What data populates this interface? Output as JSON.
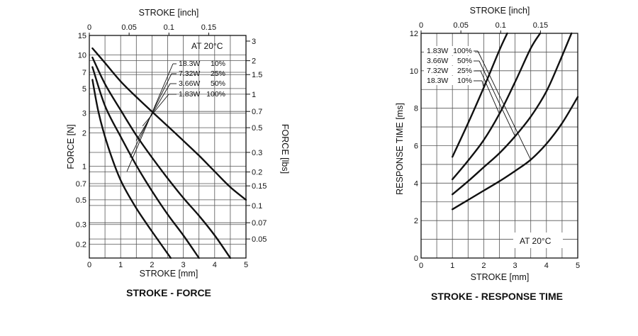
{
  "chart_data": [
    {
      "type": "line",
      "title": "STROKE - FORCE",
      "xlabel": "STROKE [mm]",
      "x2label": "STROKE [inch]",
      "ylabel": "FORCE [N]",
      "y2label": "FORCE [lbs]",
      "xlim": [
        0,
        5
      ],
      "ylim": [
        0.15,
        15
      ],
      "yscale": "log",
      "grid": true,
      "x_ticks": [
        "0",
        "1",
        "2",
        "3",
        "4",
        "5"
      ],
      "x2_ticks": [
        {
          "value": 0,
          "label": "0"
        },
        {
          "value": 0.05,
          "label": "0.05"
        },
        {
          "value": 0.1,
          "label": "0.1"
        },
        {
          "value": 0.15,
          "label": "0.15"
        }
      ],
      "y_ticks": [
        {
          "value": 15,
          "label": "15"
        },
        {
          "value": 10,
          "label": "10"
        },
        {
          "value": 7,
          "label": "7"
        },
        {
          "value": 5,
          "label": "5"
        },
        {
          "value": 3,
          "label": "3"
        },
        {
          "value": 2,
          "label": "2"
        },
        {
          "value": 1,
          "label": "1"
        },
        {
          "value": 0.7,
          "label": "0.7"
        },
        {
          "value": 0.5,
          "label": "0.5"
        },
        {
          "value": 0.3,
          "label": "0.3"
        },
        {
          "value": 0.2,
          "label": "0.2"
        }
      ],
      "y2_ticks": [
        {
          "value": 3,
          "label": "3"
        },
        {
          "value": 2,
          "label": "2"
        },
        {
          "value": 1.5,
          "label": "1.5"
        },
        {
          "value": 1,
          "label": "1"
        },
        {
          "value": 0.7,
          "label": "0.7"
        },
        {
          "value": 0.5,
          "label": "0.5"
        },
        {
          "value": 0.3,
          "label": "0.3"
        },
        {
          "value": 0.2,
          "label": "0.2"
        },
        {
          "value": 0.15,
          "label": "0.15"
        },
        {
          "value": 0.1,
          "label": "0.1"
        },
        {
          "value": 0.07,
          "label": "0.07"
        },
        {
          "value": 0.05,
          "label": "0.05"
        }
      ],
      "annotation": "AT 20°C",
      "series": [
        {
          "name": "18.3W 10%",
          "x": [
            0.1,
            0.5,
            1,
            1.5,
            2,
            2.5,
            3,
            3.5,
            4,
            4.5,
            5
          ],
          "y": [
            11.5,
            8.5,
            5.8,
            4.2,
            3.1,
            2.3,
            1.7,
            1.25,
            0.9,
            0.65,
            0.5
          ]
        },
        {
          "name": "7.32W 25%",
          "x": [
            0.1,
            0.5,
            1,
            1.5,
            2,
            2.5,
            3,
            3.5,
            4,
            4.5
          ],
          "y": [
            9.5,
            5.5,
            3.2,
            1.9,
            1.2,
            0.78,
            0.52,
            0.36,
            0.24,
            0.15
          ]
        },
        {
          "name": "3.66W 50%",
          "x": [
            0.1,
            0.5,
            1,
            1.5,
            2,
            2.5,
            3,
            3.5
          ],
          "y": [
            7.8,
            3.5,
            1.85,
            1.02,
            0.6,
            0.37,
            0.24,
            0.15
          ]
        },
        {
          "name": "1.83W 100%",
          "x": [
            0.1,
            0.3,
            0.6,
            1,
            1.5,
            2,
            2.6
          ],
          "y": [
            6.0,
            3.0,
            1.5,
            0.75,
            0.42,
            0.26,
            0.15
          ]
        }
      ],
      "legend_entries": [
        {
          "power": "18.3W",
          "duty": "10%"
        },
        {
          "power": "7.32W",
          "duty": "25%"
        },
        {
          "power": "3.66W",
          "duty": "50%"
        },
        {
          "power": "1.83W",
          "duty": "100%"
        }
      ]
    },
    {
      "type": "line",
      "title": "STROKE - RESPONSE TIME",
      "xlabel": "STROKE [mm]",
      "x2label": "STROKE [inch]",
      "ylabel": "RESPONSE TIME [ms]",
      "xlim": [
        0,
        5
      ],
      "ylim": [
        0,
        12
      ],
      "grid": true,
      "x_ticks": [
        "0",
        "1",
        "2",
        "3",
        "4",
        "5"
      ],
      "x2_ticks": [
        {
          "value": 0,
          "label": "0"
        },
        {
          "value": 0.05,
          "label": "0.05"
        },
        {
          "value": 0.1,
          "label": "0.1"
        },
        {
          "value": 0.15,
          "label": "0.15"
        }
      ],
      "y_ticks": [
        "0",
        "2",
        "4",
        "6",
        "8",
        "10",
        "12"
      ],
      "annotation": "AT 20°C",
      "series": [
        {
          "name": "1.83W 100%",
          "x": [
            1,
            1.5,
            2,
            2.5,
            3,
            3.5,
            4,
            4.5,
            5
          ],
          "y": [
            2.6,
            3.1,
            3.6,
            4.1,
            4.65,
            5.25,
            6.1,
            7.2,
            8.6
          ]
        },
        {
          "name": "3.66W 50%",
          "x": [
            1,
            1.5,
            2,
            2.5,
            3,
            3.5,
            4,
            4.4,
            4.8
          ],
          "y": [
            3.4,
            4.1,
            4.85,
            5.6,
            6.5,
            7.55,
            8.9,
            10.4,
            12
          ]
        },
        {
          "name": "7.32W 25%",
          "x": [
            1,
            1.5,
            2,
            2.5,
            3,
            3.5,
            3.8
          ],
          "y": [
            4.2,
            5.2,
            6.3,
            7.7,
            9.4,
            11.2,
            12
          ]
        },
        {
          "name": "18.3W 10%",
          "x": [
            1,
            1.5,
            2,
            2.5,
            2.75
          ],
          "y": [
            5.4,
            7.2,
            9.1,
            11.1,
            12
          ]
        }
      ],
      "legend_entries": [
        {
          "power": "1.83W",
          "duty": "100%"
        },
        {
          "power": "3.66W",
          "duty": "50%"
        },
        {
          "power": "7.32W",
          "duty": "25%"
        },
        {
          "power": "18.3W",
          "duty": "10%"
        }
      ]
    }
  ]
}
